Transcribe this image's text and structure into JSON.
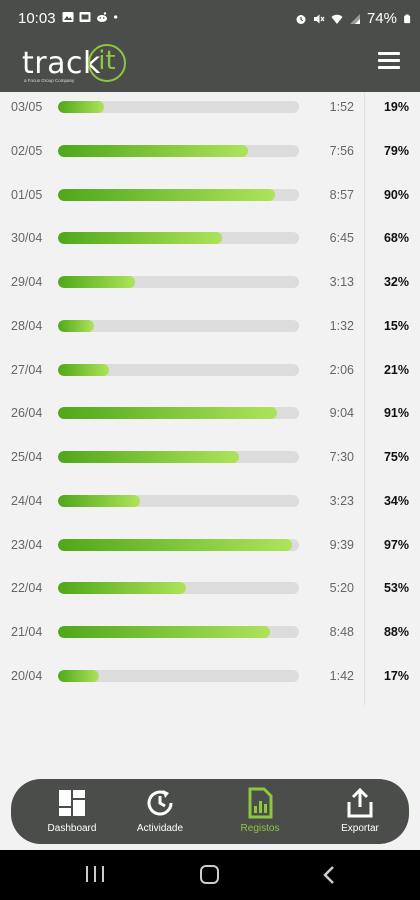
{
  "status_bar": {
    "time": "10:03",
    "battery": "74%",
    "left_icons": [
      "gallery-icon",
      "cast-icon",
      "reddit-icon",
      "dot-icon"
    ],
    "right_icons": [
      "alarm-icon",
      "mute-icon",
      "wifi-icon",
      "signal-icon",
      "battery-icon"
    ]
  },
  "app_bar": {
    "logo_word": "track",
    "logo_it": "it",
    "logo_tagline": "a Focus Group Company",
    "menu_icon": "hamburger-menu-icon"
  },
  "colors": {
    "header_bg": "#4b4d4b",
    "accent": "#8dc63f",
    "bar_start": "#4fa71a",
    "bar_end": "#aee35a",
    "track_bg": "#dcdcdc"
  },
  "records": [
    {
      "date": "03/05",
      "duration": "1:52",
      "percent": "19%",
      "progress": 0.19
    },
    {
      "date": "02/05",
      "duration": "7:56",
      "percent": "79%",
      "progress": 0.79
    },
    {
      "date": "01/05",
      "duration": "8:57",
      "percent": "90%",
      "progress": 0.9
    },
    {
      "date": "30/04",
      "duration": "6:45",
      "percent": "68%",
      "progress": 0.68
    },
    {
      "date": "29/04",
      "duration": "3:13",
      "percent": "32%",
      "progress": 0.32
    },
    {
      "date": "28/04",
      "duration": "1:32",
      "percent": "15%",
      "progress": 0.15
    },
    {
      "date": "27/04",
      "duration": "2:06",
      "percent": "21%",
      "progress": 0.21
    },
    {
      "date": "26/04",
      "duration": "9:04",
      "percent": "91%",
      "progress": 0.91
    },
    {
      "date": "25/04",
      "duration": "7:30",
      "percent": "75%",
      "progress": 0.75
    },
    {
      "date": "24/04",
      "duration": "3:23",
      "percent": "34%",
      "progress": 0.34
    },
    {
      "date": "23/04",
      "duration": "9:39",
      "percent": "97%",
      "progress": 0.97
    },
    {
      "date": "22/04",
      "duration": "5:20",
      "percent": "53%",
      "progress": 0.53
    },
    {
      "date": "21/04",
      "duration": "8:48",
      "percent": "88%",
      "progress": 0.88
    },
    {
      "date": "20/04",
      "duration": "1:42",
      "percent": "17%",
      "progress": 0.17
    }
  ],
  "bottom_nav": {
    "items": [
      {
        "label": "Dashboard",
        "icon": "dashboard-grid-icon",
        "active": false
      },
      {
        "label": "Actividade",
        "icon": "history-clock-icon",
        "active": false
      },
      {
        "label": "Registos",
        "icon": "report-chart-icon",
        "active": true
      },
      {
        "label": "Exportar",
        "icon": "share-export-icon",
        "active": false
      }
    ]
  },
  "system_nav": {
    "icons": [
      "recents-icon",
      "home-icon",
      "back-icon"
    ]
  }
}
